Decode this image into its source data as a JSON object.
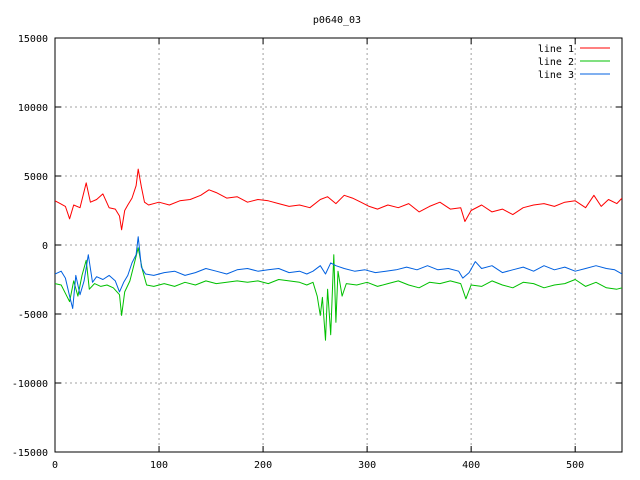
{
  "chart_data": {
    "type": "line",
    "title": "p0640_03",
    "xlabel": "",
    "ylabel": "",
    "xlim": [
      0,
      545
    ],
    "ylim": [
      -15000,
      15000
    ],
    "x_ticks": [
      0,
      100,
      200,
      300,
      400,
      500
    ],
    "y_ticks": [
      -15000,
      -10000,
      -5000,
      0,
      5000,
      10000,
      15000
    ],
    "grid": true,
    "legend_position": "top-right",
    "series": [
      {
        "name": "line 1",
        "color": "#ff0000",
        "points": [
          [
            0,
            3200
          ],
          [
            5,
            3000
          ],
          [
            10,
            2800
          ],
          [
            14,
            1900
          ],
          [
            18,
            2900
          ],
          [
            24,
            2700
          ],
          [
            30,
            4500
          ],
          [
            34,
            3100
          ],
          [
            40,
            3300
          ],
          [
            46,
            3700
          ],
          [
            52,
            2700
          ],
          [
            58,
            2600
          ],
          [
            62,
            2100
          ],
          [
            64,
            1100
          ],
          [
            67,
            2500
          ],
          [
            70,
            2900
          ],
          [
            74,
            3400
          ],
          [
            78,
            4300
          ],
          [
            80,
            5500
          ],
          [
            83,
            4200
          ],
          [
            86,
            3100
          ],
          [
            90,
            2900
          ],
          [
            100,
            3100
          ],
          [
            110,
            2900
          ],
          [
            120,
            3200
          ],
          [
            130,
            3300
          ],
          [
            140,
            3600
          ],
          [
            148,
            4000
          ],
          [
            155,
            3800
          ],
          [
            165,
            3400
          ],
          [
            175,
            3500
          ],
          [
            185,
            3100
          ],
          [
            195,
            3300
          ],
          [
            205,
            3200
          ],
          [
            215,
            3000
          ],
          [
            225,
            2800
          ],
          [
            235,
            2900
          ],
          [
            245,
            2700
          ],
          [
            255,
            3300
          ],
          [
            262,
            3500
          ],
          [
            270,
            3000
          ],
          [
            278,
            3600
          ],
          [
            286,
            3400
          ],
          [
            294,
            3100
          ],
          [
            302,
            2800
          ],
          [
            310,
            2600
          ],
          [
            320,
            2900
          ],
          [
            330,
            2700
          ],
          [
            340,
            3000
          ],
          [
            350,
            2400
          ],
          [
            360,
            2800
          ],
          [
            370,
            3100
          ],
          [
            380,
            2600
          ],
          [
            390,
            2700
          ],
          [
            394,
            1700
          ],
          [
            400,
            2500
          ],
          [
            410,
            2900
          ],
          [
            420,
            2400
          ],
          [
            430,
            2600
          ],
          [
            440,
            2200
          ],
          [
            450,
            2700
          ],
          [
            460,
            2900
          ],
          [
            470,
            3000
          ],
          [
            480,
            2800
          ],
          [
            490,
            3100
          ],
          [
            500,
            3200
          ],
          [
            510,
            2700
          ],
          [
            518,
            3600
          ],
          [
            525,
            2800
          ],
          [
            532,
            3300
          ],
          [
            540,
            3000
          ],
          [
            545,
            3400
          ]
        ]
      },
      {
        "name": "line 2",
        "color": "#00c000",
        "points": [
          [
            0,
            -2800
          ],
          [
            6,
            -2900
          ],
          [
            10,
            -3500
          ],
          [
            14,
            -4100
          ],
          [
            18,
            -2600
          ],
          [
            22,
            -3700
          ],
          [
            26,
            -2200
          ],
          [
            30,
            -1100
          ],
          [
            33,
            -3200
          ],
          [
            38,
            -2800
          ],
          [
            44,
            -3000
          ],
          [
            50,
            -2900
          ],
          [
            56,
            -3100
          ],
          [
            62,
            -3600
          ],
          [
            64,
            -5100
          ],
          [
            67,
            -3400
          ],
          [
            72,
            -2600
          ],
          [
            76,
            -1400
          ],
          [
            80,
            -200
          ],
          [
            84,
            -1800
          ],
          [
            88,
            -2900
          ],
          [
            95,
            -3000
          ],
          [
            105,
            -2800
          ],
          [
            115,
            -3000
          ],
          [
            125,
            -2700
          ],
          [
            135,
            -2900
          ],
          [
            145,
            -2600
          ],
          [
            155,
            -2800
          ],
          [
            165,
            -2700
          ],
          [
            175,
            -2600
          ],
          [
            185,
            -2700
          ],
          [
            195,
            -2600
          ],
          [
            205,
            -2800
          ],
          [
            215,
            -2500
          ],
          [
            225,
            -2600
          ],
          [
            235,
            -2700
          ],
          [
            242,
            -2900
          ],
          [
            248,
            -2700
          ],
          [
            252,
            -3700
          ],
          [
            255,
            -5100
          ],
          [
            257,
            -3800
          ],
          [
            260,
            -6900
          ],
          [
            262,
            -3200
          ],
          [
            265,
            -6500
          ],
          [
            268,
            -700
          ],
          [
            270,
            -5600
          ],
          [
            272,
            -1900
          ],
          [
            276,
            -3700
          ],
          [
            280,
            -2800
          ],
          [
            290,
            -2900
          ],
          [
            300,
            -2700
          ],
          [
            310,
            -3000
          ],
          [
            320,
            -2800
          ],
          [
            330,
            -2600
          ],
          [
            340,
            -2900
          ],
          [
            350,
            -3100
          ],
          [
            360,
            -2700
          ],
          [
            370,
            -2800
          ],
          [
            380,
            -2600
          ],
          [
            390,
            -2800
          ],
          [
            395,
            -3900
          ],
          [
            400,
            -2900
          ],
          [
            410,
            -3000
          ],
          [
            420,
            -2600
          ],
          [
            430,
            -2900
          ],
          [
            440,
            -3100
          ],
          [
            450,
            -2700
          ],
          [
            460,
            -2800
          ],
          [
            470,
            -3100
          ],
          [
            480,
            -2900
          ],
          [
            490,
            -2800
          ],
          [
            500,
            -2500
          ],
          [
            510,
            -3000
          ],
          [
            520,
            -2700
          ],
          [
            530,
            -3100
          ],
          [
            540,
            -3200
          ],
          [
            545,
            -3100
          ]
        ]
      },
      {
        "name": "line 3",
        "color": "#0060e0",
        "points": [
          [
            0,
            -2100
          ],
          [
            6,
            -1900
          ],
          [
            10,
            -2400
          ],
          [
            14,
            -3700
          ],
          [
            17,
            -4600
          ],
          [
            20,
            -2200
          ],
          [
            24,
            -3600
          ],
          [
            28,
            -2600
          ],
          [
            32,
            -700
          ],
          [
            36,
            -2700
          ],
          [
            40,
            -2300
          ],
          [
            46,
            -2500
          ],
          [
            52,
            -2200
          ],
          [
            58,
            -2600
          ],
          [
            62,
            -3400
          ],
          [
            66,
            -2700
          ],
          [
            70,
            -2200
          ],
          [
            74,
            -1300
          ],
          [
            78,
            -700
          ],
          [
            80,
            600
          ],
          [
            83,
            -1600
          ],
          [
            87,
            -2100
          ],
          [
            95,
            -2200
          ],
          [
            105,
            -2000
          ],
          [
            115,
            -1900
          ],
          [
            125,
            -2200
          ],
          [
            135,
            -2000
          ],
          [
            145,
            -1700
          ],
          [
            155,
            -1900
          ],
          [
            165,
            -2100
          ],
          [
            175,
            -1800
          ],
          [
            185,
            -1700
          ],
          [
            195,
            -1900
          ],
          [
            205,
            -1800
          ],
          [
            215,
            -1700
          ],
          [
            225,
            -2000
          ],
          [
            235,
            -1900
          ],
          [
            242,
            -2100
          ],
          [
            248,
            -1900
          ],
          [
            255,
            -1500
          ],
          [
            260,
            -2100
          ],
          [
            265,
            -1300
          ],
          [
            270,
            -1500
          ],
          [
            278,
            -1700
          ],
          [
            288,
            -1900
          ],
          [
            298,
            -1800
          ],
          [
            308,
            -2000
          ],
          [
            318,
            -1900
          ],
          [
            328,
            -1800
          ],
          [
            338,
            -1600
          ],
          [
            348,
            -1800
          ],
          [
            358,
            -1500
          ],
          [
            368,
            -1800
          ],
          [
            378,
            -1700
          ],
          [
            388,
            -1900
          ],
          [
            392,
            -2400
          ],
          [
            398,
            -2000
          ],
          [
            404,
            -1200
          ],
          [
            410,
            -1700
          ],
          [
            420,
            -1500
          ],
          [
            430,
            -2000
          ],
          [
            440,
            -1800
          ],
          [
            450,
            -1600
          ],
          [
            460,
            -1900
          ],
          [
            470,
            -1500
          ],
          [
            480,
            -1800
          ],
          [
            490,
            -1600
          ],
          [
            500,
            -1900
          ],
          [
            510,
            -1700
          ],
          [
            520,
            -1500
          ],
          [
            530,
            -1700
          ],
          [
            538,
            -1800
          ],
          [
            545,
            -2100
          ]
        ]
      }
    ]
  }
}
